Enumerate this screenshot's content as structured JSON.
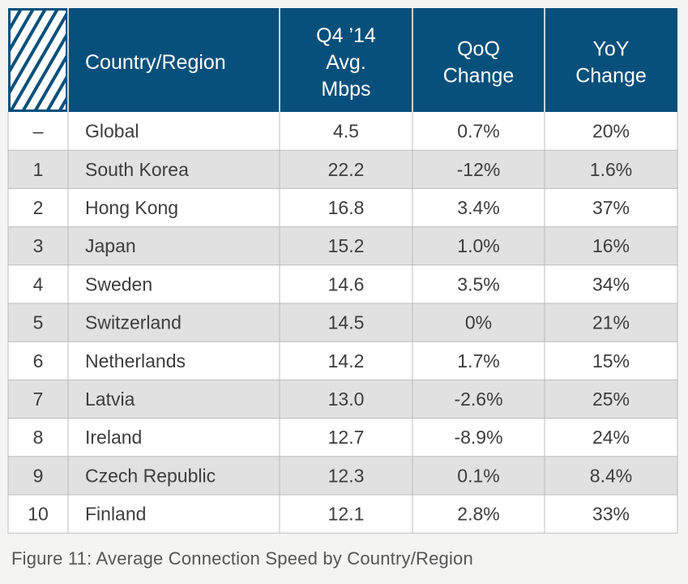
{
  "colors": {
    "header_bg": "#07507c",
    "header_text": "#ffffff",
    "row_odd": "#ffffff",
    "row_even": "#e1e1e2",
    "grid": "#bcbcbc",
    "body_text": "#3d3d3d",
    "page_bg": "#f4f4f3"
  },
  "caption": "Figure 11: Average Connection Speed by Country/Region",
  "chart_data": {
    "type": "table",
    "columns": [
      [
        "",
        ""
      ],
      [
        "Country/Region"
      ],
      [
        "Q4 ’14",
        "Avg.",
        "Mbps"
      ],
      [
        "QoQ",
        "Change"
      ],
      [
        "YoY",
        "Change"
      ]
    ],
    "rows": [
      {
        "rank": "–",
        "region": "Global",
        "mbps": "4.5",
        "qoq": "0.7%",
        "yoy": "20%"
      },
      {
        "rank": "1",
        "region": "South Korea",
        "mbps": "22.2",
        "qoq": "-12%",
        "yoy": "1.6%"
      },
      {
        "rank": "2",
        "region": "Hong Kong",
        "mbps": "16.8",
        "qoq": "3.4%",
        "yoy": "37%"
      },
      {
        "rank": "3",
        "region": "Japan",
        "mbps": "15.2",
        "qoq": "1.0%",
        "yoy": "16%"
      },
      {
        "rank": "4",
        "region": "Sweden",
        "mbps": "14.6",
        "qoq": "3.5%",
        "yoy": "34%"
      },
      {
        "rank": "5",
        "region": "Switzerland",
        "mbps": "14.5",
        "qoq": "0%",
        "yoy": "21%"
      },
      {
        "rank": "6",
        "region": "Netherlands",
        "mbps": "14.2",
        "qoq": "1.7%",
        "yoy": "15%"
      },
      {
        "rank": "7",
        "region": "Latvia",
        "mbps": "13.0",
        "qoq": "-2.6%",
        "yoy": "25%"
      },
      {
        "rank": "8",
        "region": "Ireland",
        "mbps": "12.7",
        "qoq": "-8.9%",
        "yoy": "24%"
      },
      {
        "rank": "9",
        "region": "Czech Republic",
        "mbps": "12.3",
        "qoq": "0.1%",
        "yoy": "8.4%"
      },
      {
        "rank": "10",
        "region": "Finland",
        "mbps": "12.1",
        "qoq": "2.8%",
        "yoy": "33%"
      }
    ]
  }
}
